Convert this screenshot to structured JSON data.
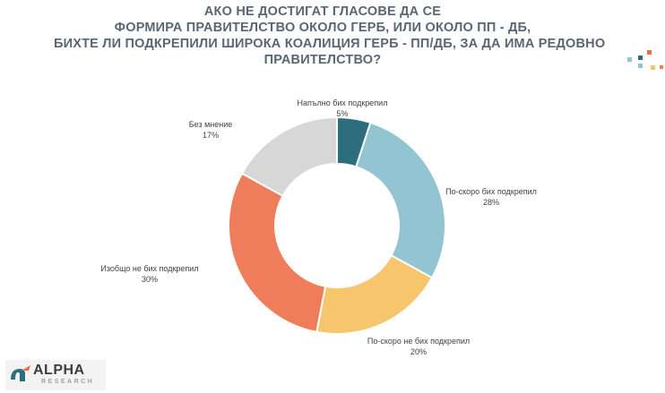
{
  "title_lines": [
    "АКО НЕ ДОСТИГАТ ГЛАСОВЕ ДА СЕ",
    "ФОРМИРА ПРАВИТЕЛСТВО ОКОЛО ГЕРБ, ИЛИ ОКОЛО ПП - ДБ,",
    "БИХТЕ ЛИ ПОДКРЕПИЛИ ШИРОКА КОАЛИЦИЯ ГЕРБ - ПП/ДБ, ЗА ДА ИМА РЕДОВНО",
    "ПРАВИТЕЛСТВО?"
  ],
  "chart_data": {
    "type": "pie",
    "donut": true,
    "start": "12 o'clock",
    "direction": "clockwise",
    "slices": [
      {
        "label": "Напълно бих подкрепил",
        "value": 5,
        "value_label": "5%",
        "color": "#2c6e7e"
      },
      {
        "label": "По-скоро бих подкрепил",
        "value": 28,
        "value_label": "28%",
        "color": "#92c5d1"
      },
      {
        "label": "По-скоро не бих подкрепил",
        "value": 20,
        "value_label": "20%",
        "color": "#f7c56b"
      },
      {
        "label": "Изобщо не бих подкрепил",
        "value": 30,
        "value_label": "30%",
        "color": "#ef7d5b"
      },
      {
        "label": "Без мнение",
        "value": 17,
        "value_label": "17%",
        "color": "#d7d7d7"
      }
    ]
  },
  "logo": {
    "name": "ALPHA",
    "sub": "RESEARCH",
    "mark": "α",
    "accent": "#f26b3a"
  }
}
